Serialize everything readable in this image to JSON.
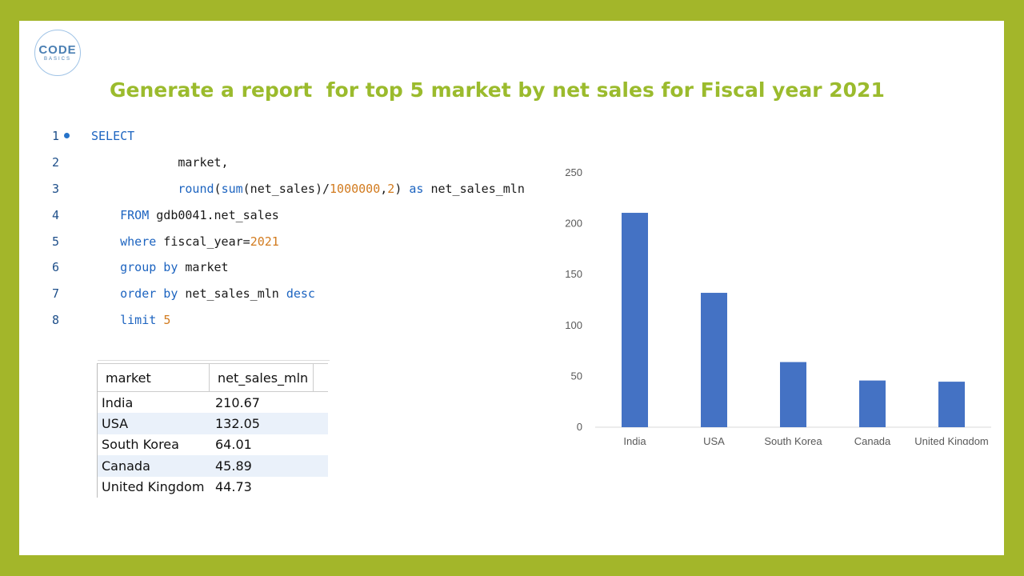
{
  "logo": {
    "main": "CODE",
    "sub": "BASICS"
  },
  "title": "Generate a report  for top 5 market by net sales for Fiscal year 2021",
  "code": {
    "lines": [
      {
        "num": "1",
        "tokens": [
          {
            "t": "SELECT",
            "c": "kw"
          }
        ]
      },
      {
        "num": "2",
        "tokens": [
          {
            "t": "            market,",
            "c": "id"
          }
        ]
      },
      {
        "num": "3",
        "tokens": [
          {
            "t": "            ",
            "c": "id"
          },
          {
            "t": "round",
            "c": "fn"
          },
          {
            "t": "(",
            "c": "id"
          },
          {
            "t": "sum",
            "c": "fn"
          },
          {
            "t": "(net_sales)/",
            "c": "id"
          },
          {
            "t": "1000000",
            "c": "num"
          },
          {
            "t": ",",
            "c": "id"
          },
          {
            "t": "2",
            "c": "num"
          },
          {
            "t": ") ",
            "c": "id"
          },
          {
            "t": "as",
            "c": "kw"
          },
          {
            "t": " net_sales_mln",
            "c": "id"
          }
        ]
      },
      {
        "num": "4",
        "tokens": [
          {
            "t": "    ",
            "c": "id"
          },
          {
            "t": "FROM",
            "c": "kw"
          },
          {
            "t": " gdb0041.net_sales",
            "c": "id"
          }
        ]
      },
      {
        "num": "5",
        "tokens": [
          {
            "t": "    ",
            "c": "id"
          },
          {
            "t": "where",
            "c": "kw"
          },
          {
            "t": " fiscal_year=",
            "c": "id"
          },
          {
            "t": "2021",
            "c": "num"
          }
        ]
      },
      {
        "num": "6",
        "tokens": [
          {
            "t": "    ",
            "c": "id"
          },
          {
            "t": "group by",
            "c": "kw"
          },
          {
            "t": " market",
            "c": "id"
          }
        ]
      },
      {
        "num": "7",
        "tokens": [
          {
            "t": "    ",
            "c": "id"
          },
          {
            "t": "order by",
            "c": "kw"
          },
          {
            "t": " net_sales_mln ",
            "c": "id"
          },
          {
            "t": "desc",
            "c": "kw"
          }
        ]
      },
      {
        "num": "8",
        "tokens": [
          {
            "t": "    ",
            "c": "id"
          },
          {
            "t": "limit",
            "c": "kw"
          },
          {
            "t": " ",
            "c": "id"
          },
          {
            "t": "5",
            "c": "num"
          }
        ]
      }
    ]
  },
  "result_table": {
    "headers": [
      "market",
      "net_sales_mln"
    ],
    "rows": [
      [
        "India",
        "210.67"
      ],
      [
        "USA",
        "132.05"
      ],
      [
        "South Korea",
        "64.01"
      ],
      [
        "Canada",
        "45.89"
      ],
      [
        "United Kingdom",
        "44.73"
      ]
    ]
  },
  "colors": {
    "bar": "#4472c4",
    "title": "#9bbb2d",
    "frame": "#a3b62a"
  },
  "chart_data": {
    "type": "bar",
    "categories": [
      "India",
      "USA",
      "South Korea",
      "Canada",
      "United Kingdom"
    ],
    "values": [
      210.67,
      132.05,
      64.01,
      45.89,
      44.73
    ],
    "title": "",
    "xlabel": "",
    "ylabel": "",
    "ylim": [
      0,
      250
    ],
    "yticks": [
      0,
      50,
      100,
      150,
      200,
      250
    ],
    "grid": false,
    "legend": "none"
  }
}
